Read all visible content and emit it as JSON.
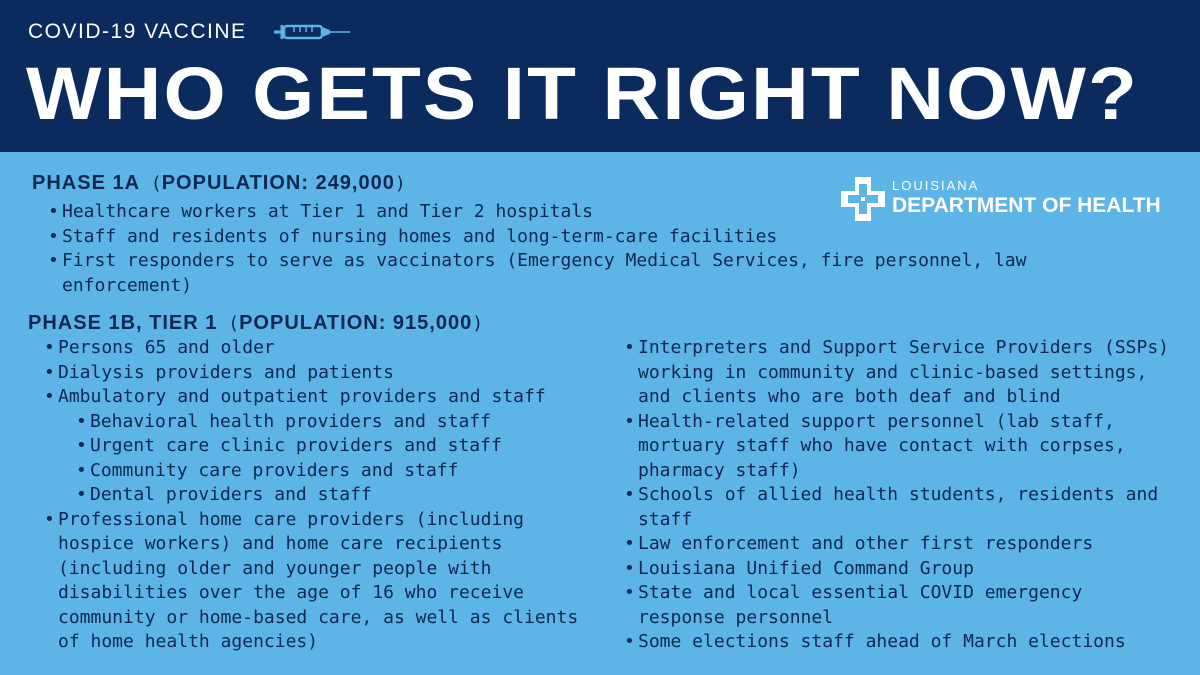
{
  "header": {
    "kicker": "COVID-19 VACCINE",
    "headline": "WHO GETS  IT RIGHT NOW?",
    "syringe_icon": "syringe-icon"
  },
  "logo": {
    "line1": "LOUISIANA",
    "line2": "DEPARTMENT OF HEALTH",
    "icon": "health-cross-icon"
  },
  "phase1a": {
    "title": "PHASE 1A",
    "population_open": "(",
    "population": "POPULATION: 249,000",
    "population_close": ")",
    "items": [
      "Healthcare workers at Tier 1 and Tier 2 hospitals",
      "Staff and residents of nursing homes and long-term-care facilities",
      "First responders to serve as vaccinators (Emergency Medical Services, fire personnel, law",
      "enforcement)"
    ]
  },
  "phase1b": {
    "title": "PHASE 1B, TIER 1",
    "population_open": "(",
    "population": "POPULATION: 915,000",
    "population_close": ")",
    "left_items": [
      "Persons 65 and older",
      "Dialysis providers and patients",
      "Ambulatory and outpatient providers and staff",
      "Behavioral health providers and staff",
      "Urgent care clinic providers and staff",
      "Community care providers and staff",
      "Dental providers and staff",
      "Professional home care providers (including",
      "hospice workers) and home care recipients",
      "(including older and younger people with",
      "disabilities over the age of 16 who receive",
      "community or home-based care, as well as clients",
      "of home health agencies)"
    ],
    "right_items": [
      "Interpreters and Support Service Providers (SSPs)",
      "working in community and clinic-based settings,",
      "and clients who are both deaf and blind",
      "Health-related support personnel (lab staff,",
      "mortuary staff who have contact with corpses,",
      "pharmacy staff)",
      "Schools of allied health students, residents and",
      "staff",
      "Law enforcement and other first responders",
      "Louisiana Unified Command Group",
      "State and local essential COVID emergency",
      "response personnel",
      "Some elections staff ahead of March elections"
    ]
  }
}
